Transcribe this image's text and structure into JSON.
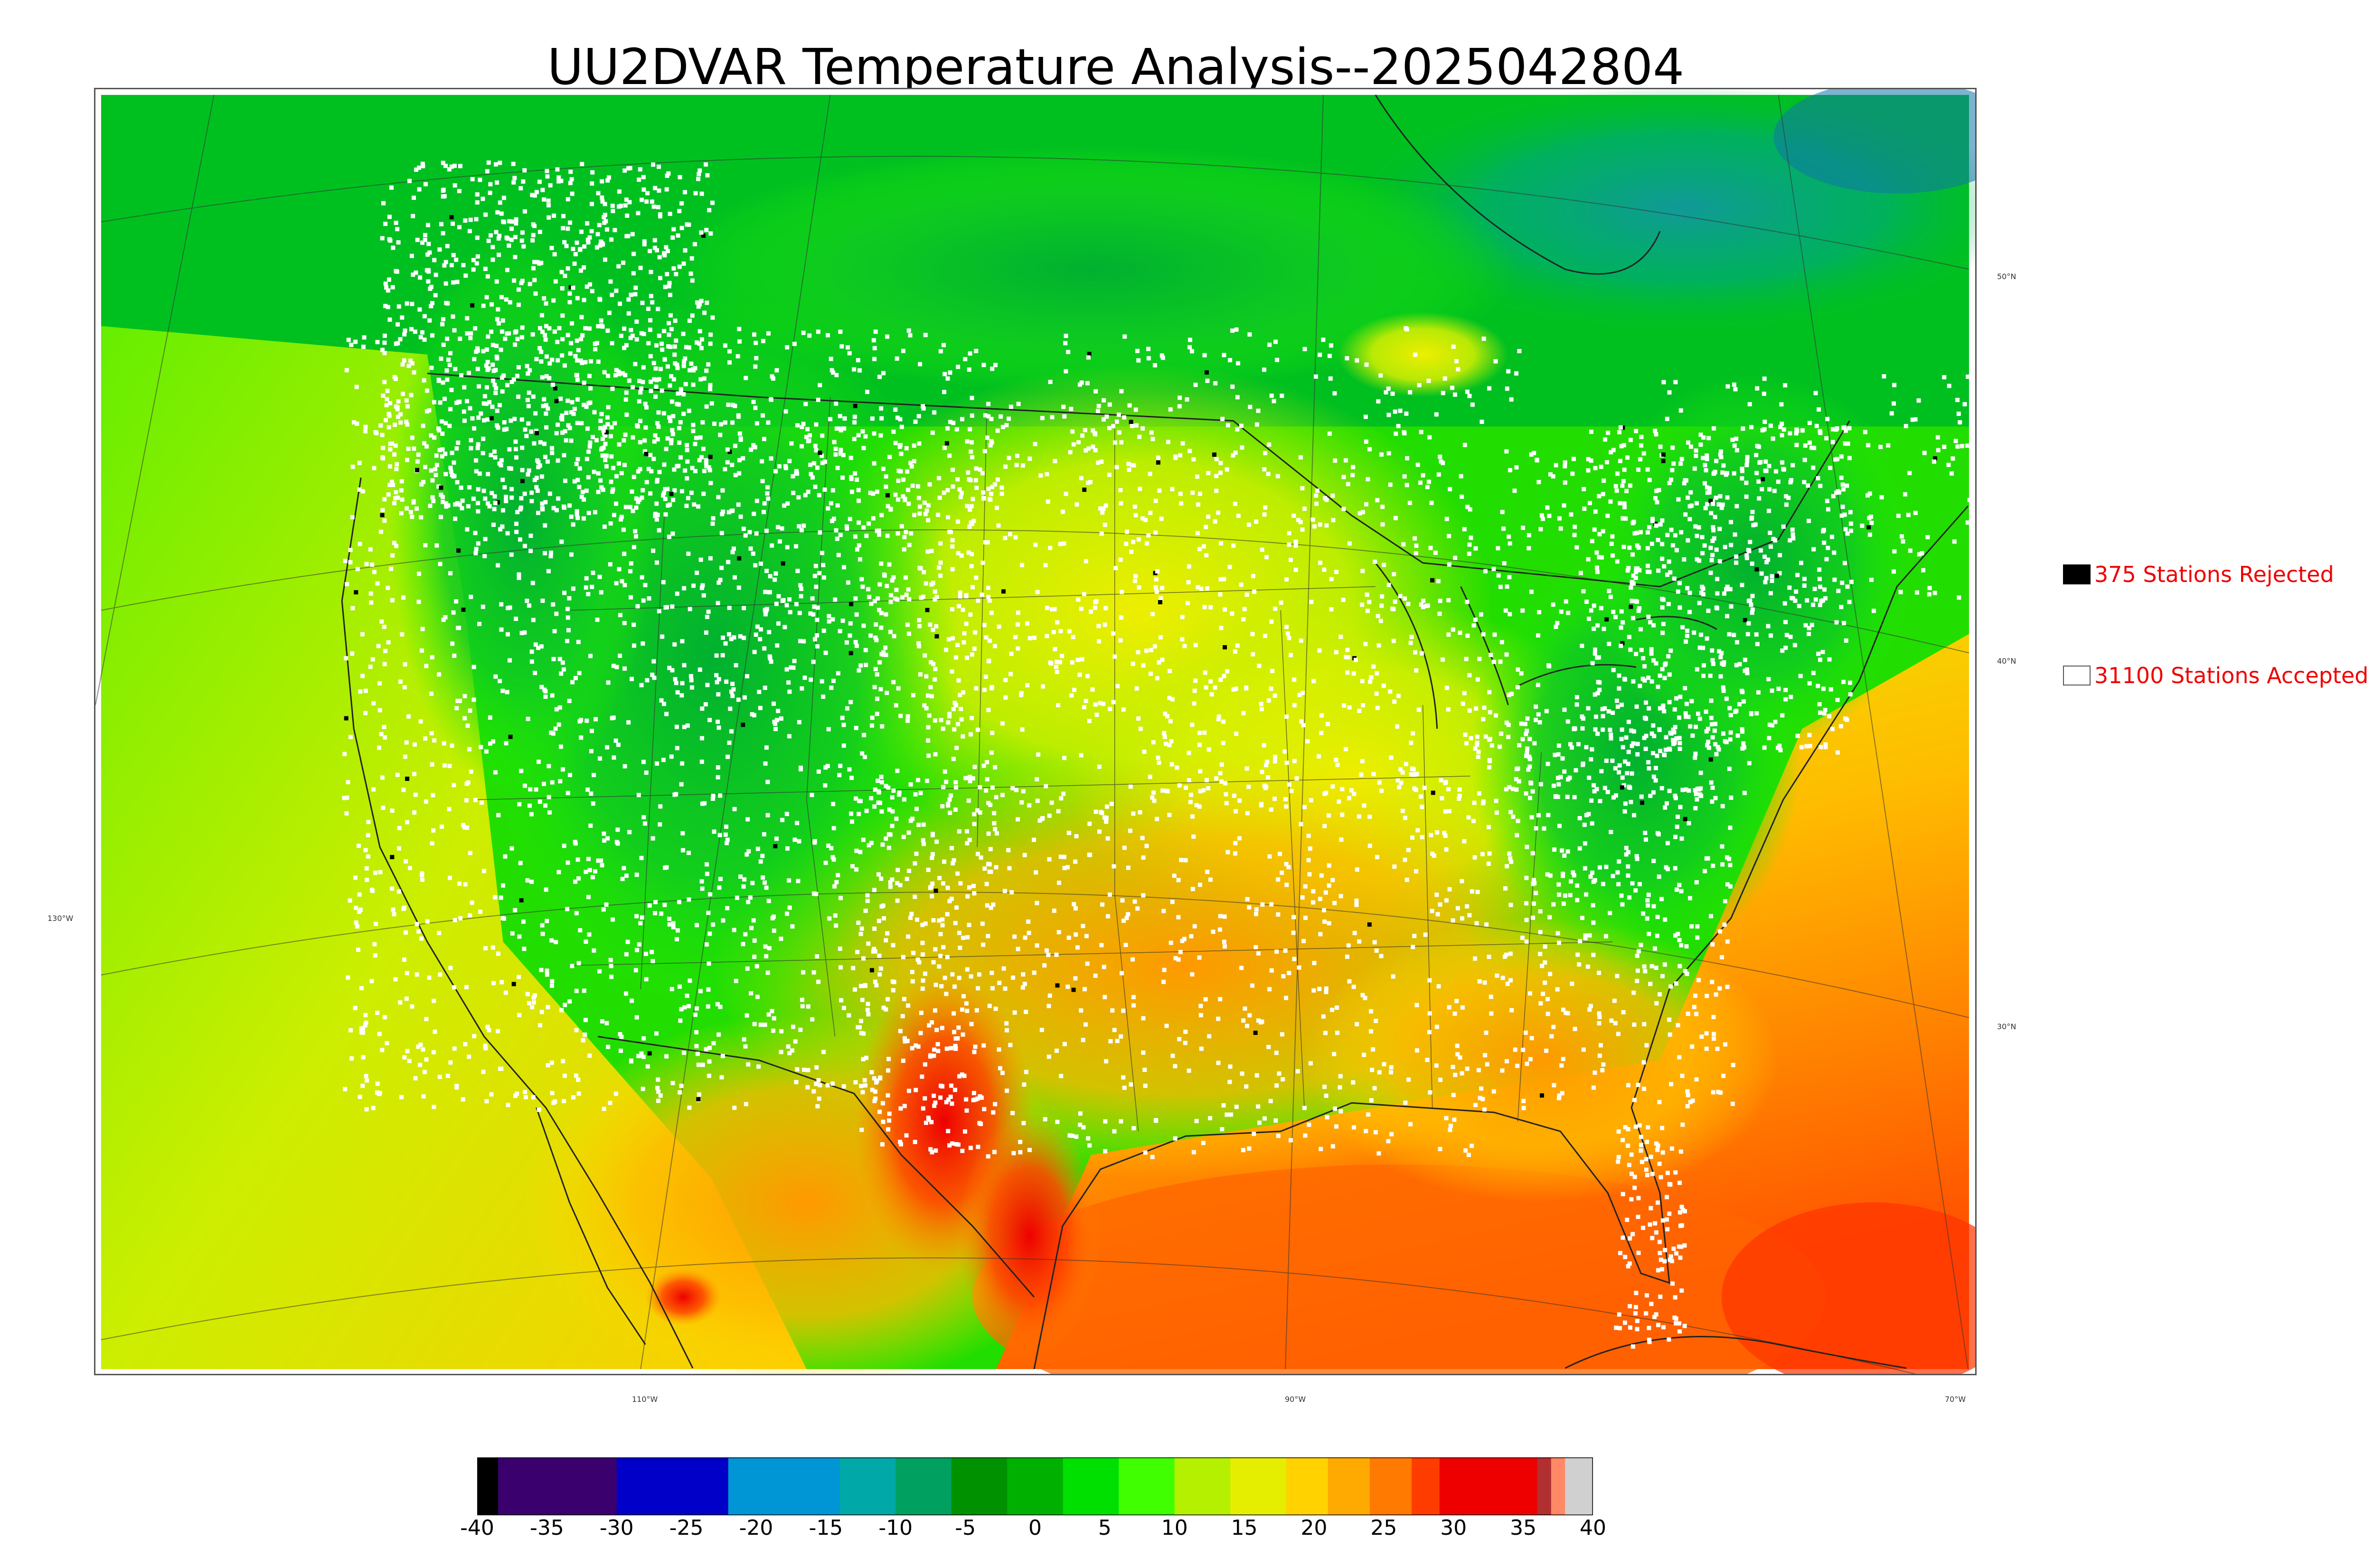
{
  "title": "UU2DVAR Temperature Analysis--2025042804",
  "map": {
    "lat_labels": [
      {
        "id": "lat-50",
        "text": "50°N"
      },
      {
        "id": "lat-40",
        "text": "40°N"
      },
      {
        "id": "lat-30",
        "text": "30°N"
      }
    ],
    "lon_labels": [
      {
        "id": "lon-130",
        "text": "130°W"
      },
      {
        "id": "lon-110",
        "text": "110°W"
      },
      {
        "id": "lon-90",
        "text": "90°W"
      },
      {
        "id": "lon-70",
        "text": "70°W"
      }
    ],
    "field_colors": {
      "cold": "#00bb33",
      "cool": "#22ee00",
      "mild": "#ccee00",
      "warm": "#ffcc00",
      "hot": "#ff7700",
      "very_hot": "#ee1100",
      "canada_cold": "#119999",
      "station_accepted": "#ffffff",
      "station_rejected": "#000000",
      "border": "#222222"
    }
  },
  "legend": {
    "rejected": {
      "label": "375 Stations Rejected",
      "swatch_color": "#000000"
    },
    "accepted": {
      "label": "31100 Stations Accepted",
      "swatch_color": "#ffffff"
    }
  },
  "colorbar": {
    "min": -40,
    "max": 40,
    "ticks": [
      "-40",
      "-35",
      "-30",
      "-25",
      "-20",
      "-15",
      "-10",
      "-5",
      "0",
      "5",
      "10",
      "15",
      "20",
      "25",
      "30",
      "35",
      "40"
    ],
    "segments": [
      {
        "from": -40,
        "to": -38.5,
        "color": "#000000"
      },
      {
        "from": -38.5,
        "to": -30,
        "color": "#3a006e"
      },
      {
        "from": -30,
        "to": -22,
        "color": "#0000c8"
      },
      {
        "from": -22,
        "to": -14,
        "color": "#0095d5"
      },
      {
        "from": -14,
        "to": -10,
        "color": "#00a8a8"
      },
      {
        "from": -10,
        "to": -6,
        "color": "#00a060"
      },
      {
        "from": -6,
        "to": -2,
        "color": "#009100"
      },
      {
        "from": -2,
        "to": 2,
        "color": "#00b000"
      },
      {
        "from": 2,
        "to": 6,
        "color": "#00e000"
      },
      {
        "from": 6,
        "to": 10,
        "color": "#40ff00"
      },
      {
        "from": 10,
        "to": 14,
        "color": "#b4f000"
      },
      {
        "from": 14,
        "to": 18,
        "color": "#e6ee00"
      },
      {
        "from": 18,
        "to": 21,
        "color": "#ffd200"
      },
      {
        "from": 21,
        "to": 24,
        "color": "#ffaa00"
      },
      {
        "from": 24,
        "to": 27,
        "color": "#ff7a00"
      },
      {
        "from": 27,
        "to": 29,
        "color": "#ff3c00"
      },
      {
        "from": 29,
        "to": 36,
        "color": "#ee0000"
      },
      {
        "from": 36,
        "to": 37,
        "color": "#b03030"
      },
      {
        "from": 37,
        "to": 38,
        "color": "#ff8866"
      },
      {
        "from": 38,
        "to": 40,
        "color": "#d0d0d0"
      }
    ]
  }
}
